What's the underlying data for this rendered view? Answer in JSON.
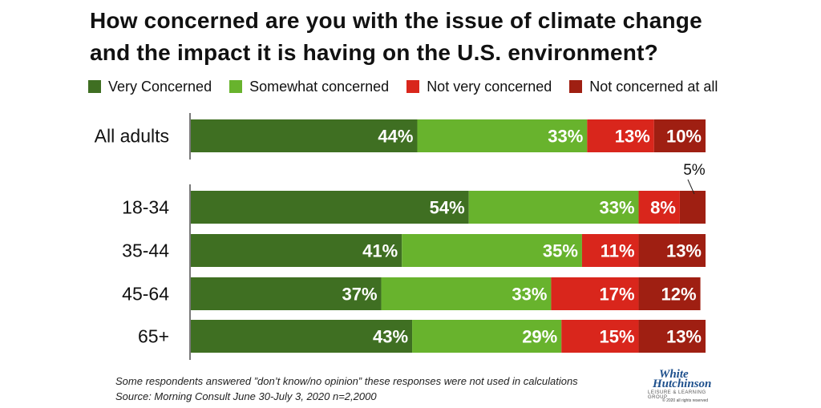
{
  "title_lines": [
    "How concerned are you with the issue of climate change",
    "and the impact it is having on the U.S. environment?"
  ],
  "legend": [
    {
      "label": "Very Concerned",
      "color": "#3f6f22"
    },
    {
      "label": "Somewhat concerned",
      "color": "#68b32d"
    },
    {
      "label": "Not very concerned",
      "color": "#d9261c"
    },
    {
      "label": "Not concerned at all",
      "color": "#9f1f12"
    }
  ],
  "chart_data": {
    "type": "bar",
    "orientation": "horizontal",
    "stacked": true,
    "unit": "%",
    "categories": [
      "All adults",
      "18-34",
      "35-44",
      "45-64",
      "65+"
    ],
    "series": [
      {
        "name": "Very Concerned",
        "color": "#3f6f22",
        "values": [
          44,
          54,
          41,
          37,
          43
        ]
      },
      {
        "name": "Somewhat concerned",
        "color": "#68b32d",
        "values": [
          33,
          33,
          35,
          33,
          29
        ]
      },
      {
        "name": "Not very concerned",
        "color": "#d9261c",
        "values": [
          13,
          8,
          11,
          17,
          15
        ]
      },
      {
        "name": "Not concerned at all",
        "color": "#9f1f12",
        "values": [
          10,
          5,
          13,
          12,
          13
        ]
      }
    ],
    "callout": {
      "category": "18-34",
      "series": "Not concerned at all",
      "label": "5%"
    },
    "legend_position": "top",
    "grid": false
  },
  "footnotes": [
    "Some respondents answered ”don’t know/no opinion”  these responses were not used in calculations",
    "Source: Morning Consult June 30-July 3, 2020 n=2,2000"
  ],
  "logo": {
    "line1": "White",
    "line2": "Hutchinson",
    "tagline": "LEISURE & LEARNING GROUP",
    "copyright": "© 2020 all rights reserved"
  }
}
